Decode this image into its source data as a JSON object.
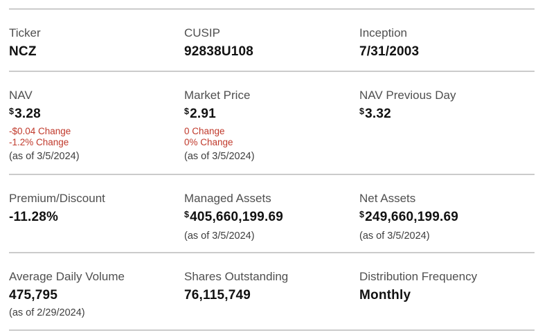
{
  "colors": {
    "label_gray": "#4f4f4f",
    "value_black": "#111111",
    "negative_red": "#c0392b",
    "divider_gray": "#cbcbcb",
    "background": "#ffffff"
  },
  "stats": {
    "ticker": {
      "label": "Ticker",
      "value": "NCZ"
    },
    "cusip": {
      "label": "CUSIP",
      "value": "92838U108"
    },
    "inception": {
      "label": "Inception",
      "value": "7/31/2003"
    },
    "nav": {
      "label": "NAV",
      "currency": "$",
      "value": "3.28",
      "change_amount": "-$0.04 Change",
      "change_percent": "-1.2% Change",
      "as_of": "(as of 3/5/2024)"
    },
    "market_price": {
      "label": "Market Price",
      "currency": "$",
      "value": "2.91",
      "change_amount": "0 Change",
      "change_percent": "0% Change",
      "as_of": "(as of 3/5/2024)"
    },
    "nav_previous_day": {
      "label": "NAV Previous Day",
      "currency": "$",
      "value": "3.32"
    },
    "premium_discount": {
      "label": "Premium/Discount",
      "value": "-11.28%"
    },
    "managed_assets": {
      "label": "Managed Assets",
      "currency": "$",
      "value": "405,660,199.69",
      "as_of": "(as of 3/5/2024)"
    },
    "net_assets": {
      "label": "Net Assets",
      "currency": "$",
      "value": "249,660,199.69",
      "as_of": "(as of 3/5/2024)"
    },
    "average_daily_volume": {
      "label": "Average Daily Volume",
      "value": "475,795",
      "as_of": "(as of 2/29/2024)"
    },
    "shares_outstanding": {
      "label": "Shares Outstanding",
      "value": "76,115,749"
    },
    "distribution_frequency": {
      "label": "Distribution Frequency",
      "value": "Monthly"
    }
  }
}
